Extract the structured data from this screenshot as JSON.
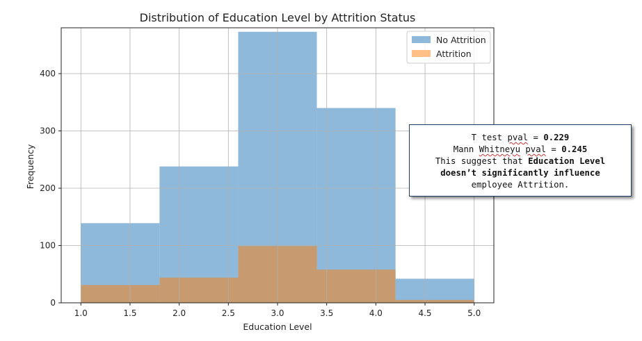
{
  "chart_data": {
    "type": "bar",
    "title": "Distribution of Education Level by Attrition Status",
    "xlabel": "Education Level",
    "ylabel": "Frequency",
    "xlim": [
      0.8,
      5.2
    ],
    "ylim": [
      0,
      480
    ],
    "xticks": [
      "1.0",
      "1.5",
      "2.0",
      "2.5",
      "3.0",
      "3.5",
      "4.0",
      "4.5",
      "5.0"
    ],
    "yticks": [
      "0",
      "100",
      "200",
      "300",
      "400"
    ],
    "bin_edges": [
      1.0,
      1.8,
      2.6,
      3.4,
      4.2,
      5.0
    ],
    "series": [
      {
        "name": "No Attrition",
        "color": "#8fb9da",
        "values": [
          139,
          238,
          473,
          340,
          42
        ]
      },
      {
        "name": "Attrition",
        "color": "#ffbf86",
        "values": [
          31,
          44,
          99,
          58,
          5
        ]
      }
    ],
    "overlap_color": "#c79a6f",
    "grid": true,
    "legend_position": "top-right"
  },
  "annotation": {
    "line1_prefix": "T test ",
    "line1_squiggle": "pval",
    "line1_middle": " = ",
    "line1_value": "0.229",
    "line2_prefix": "Mann ",
    "line2_squiggle1": "Whitneyu",
    "line2_space": " ",
    "line2_squiggle2": "pval",
    "line2_middle": " = ",
    "line2_value": "0.245",
    "line3_prefix": "This suggest that ",
    "line3_bold": "Education Level",
    "line4_bold": "doesn’t significantly influence",
    "line5": "employee Attrition."
  }
}
